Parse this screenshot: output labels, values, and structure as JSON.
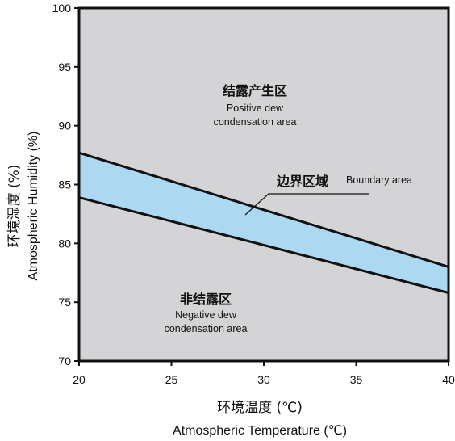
{
  "chart_data": {
    "type": "area",
    "xlim": [
      20,
      40
    ],
    "ylim": [
      70,
      100
    ],
    "xticks": [
      20,
      25,
      30,
      35,
      40
    ],
    "yticks": [
      70,
      75,
      80,
      85,
      90,
      95,
      100
    ],
    "xlabel_zh": "环境温度 (℃)",
    "xlabel_en": "Atmospheric Temperature (℃)",
    "ylabel_zh": "环境湿度 (%)",
    "ylabel_en": "Atmospheric Humidity (%)",
    "series": [
      {
        "name": "upper boundary",
        "x": [
          20,
          40
        ],
        "y": [
          87.7,
          78.0
        ]
      },
      {
        "name": "lower boundary",
        "x": [
          20,
          40
        ],
        "y": [
          83.9,
          75.8
        ]
      }
    ],
    "regions": {
      "dew": {
        "zh": "结露产生区",
        "en_line1": "Positive dew",
        "en_line2": "condensation area"
      },
      "boundary": {
        "zh": "边界区域",
        "en": "Boundary area"
      },
      "no_dew": {
        "zh": "非结露区",
        "en_line1": "Negative dew",
        "en_line2": "condensation area"
      }
    },
    "colors": {
      "plot_background": "#d4d4d6",
      "boundary_fill": "#acd8f2",
      "line": "#111111"
    }
  }
}
